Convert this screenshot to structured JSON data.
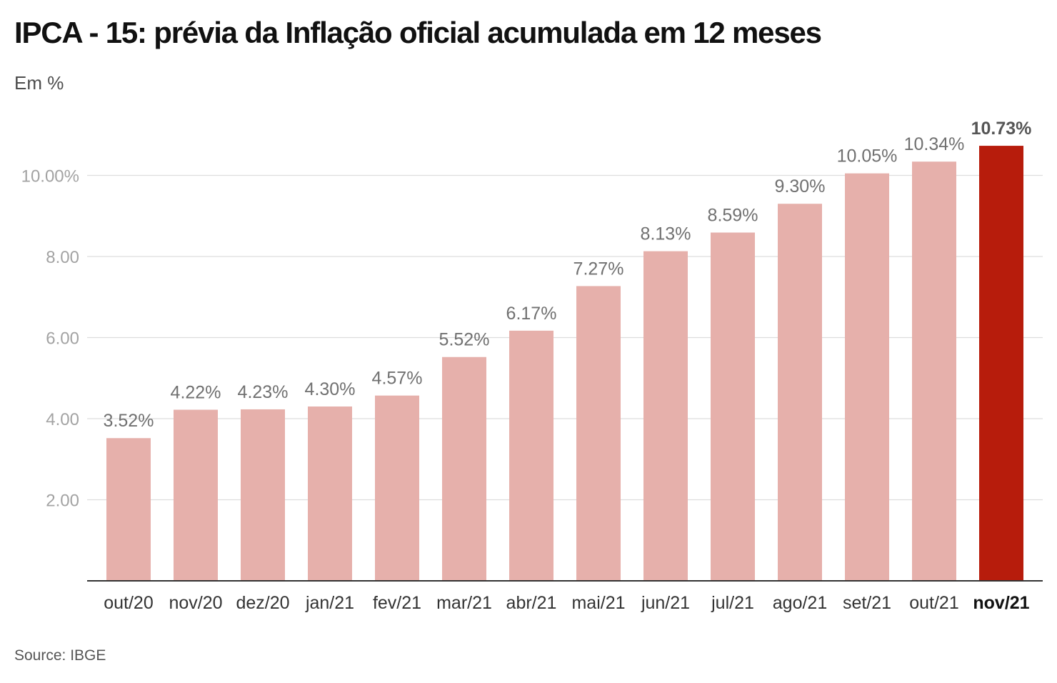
{
  "chart_data": {
    "type": "bar",
    "title": "IPCA - 15: prévia da Inflação oficial acumulada em 12 meses",
    "subtitle": "Em %",
    "source": "Source: IBGE",
    "categories": [
      "out/20",
      "nov/20",
      "dez/20",
      "jan/21",
      "fev/21",
      "mar/21",
      "abr/21",
      "mai/21",
      "jun/21",
      "jul/21",
      "ago/21",
      "set/21",
      "out/21",
      "nov/21"
    ],
    "values": [
      3.52,
      4.22,
      4.23,
      4.3,
      4.57,
      5.52,
      6.17,
      7.27,
      8.13,
      8.59,
      9.3,
      10.05,
      10.34,
      10.73
    ],
    "data_labels": [
      "3.52%",
      "4.22%",
      "4.23%",
      "4.30%",
      "4.57%",
      "5.52%",
      "6.17%",
      "7.27%",
      "8.13%",
      "8.59%",
      "9.30%",
      "10.05%",
      "10.34%",
      "10.73%"
    ],
    "yticks": [
      2,
      4,
      6,
      8,
      10
    ],
    "ytick_labels": [
      "2.00",
      "4.00",
      "6.00",
      "8.00",
      "10.00%"
    ],
    "ylim": [
      0,
      12
    ],
    "highlight_index": 13,
    "grid": true,
    "colors": {
      "bar": "#e6b0ab",
      "highlight": "#b71c0c"
    }
  }
}
